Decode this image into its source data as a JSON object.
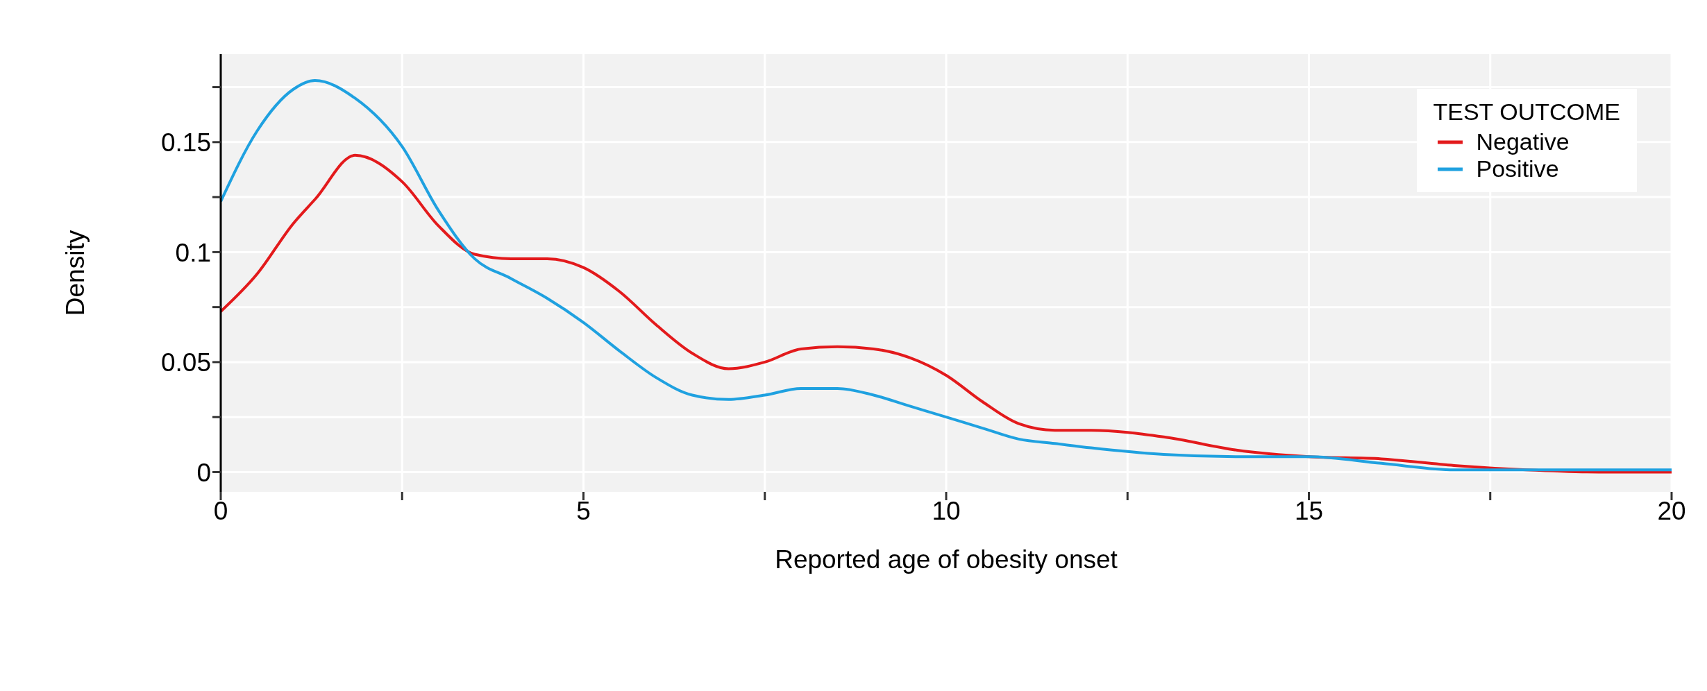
{
  "chart_data": {
    "type": "line",
    "xlabel": "Reported age of obesity onset",
    "ylabel": "Density",
    "legend_title": "TEST OUTCOME",
    "legend": "top right",
    "grid": true,
    "marker": "none",
    "line_style": "solid",
    "x": [
      0,
      0.5,
      1,
      1.3,
      1.85,
      2.5,
      3,
      3.5,
      4,
      4.5,
      5,
      5.5,
      6,
      6.5,
      7,
      7.5,
      8,
      8.5,
      9,
      9.5,
      10,
      10.5,
      11,
      11.5,
      12,
      13,
      14,
      15,
      16,
      17,
      18,
      19,
      20
    ],
    "xlim": [
      0,
      20
    ],
    "xticks": [
      0,
      {
        "value": 2.5,
        "label": null
      },
      5,
      {
        "value": 7.5,
        "label": null
      },
      10,
      {
        "value": 12.5,
        "label": null
      },
      15,
      {
        "value": 17.5,
        "label": null
      },
      20
    ],
    "ylim": [
      -0.009,
      0.19
    ],
    "yticks": [
      0,
      {
        "value": 0.025,
        "label": null
      },
      0.05,
      {
        "value": 0.075,
        "label": null
      },
      0.1,
      {
        "value": 0.125,
        "label": null
      },
      0.15,
      {
        "value": 0.175,
        "label": null
      }
    ],
    "series": [
      {
        "name": "Negative",
        "color": "#e31a1c",
        "values": [
          0.073,
          0.09,
          0.113,
          0.124,
          0.144,
          0.132,
          0.112,
          0.099,
          0.097,
          0.097,
          0.093,
          0.082,
          0.067,
          0.054,
          0.047,
          0.05,
          0.056,
          0.057,
          0.056,
          0.052,
          0.044,
          0.032,
          0.022,
          0.019,
          0.019,
          0.016,
          0.01,
          0.007,
          0.006,
          0.003,
          0.001,
          0,
          0
        ]
      },
      {
        "name": "Positive",
        "color": "#1fa1e0",
        "values": [
          0.123,
          0.155,
          0.174,
          0.178,
          0.17,
          0.148,
          0.119,
          0.097,
          0.088,
          0.079,
          0.068,
          0.055,
          0.043,
          0.035,
          0.033,
          0.035,
          0.038,
          0.038,
          0.035,
          0.03,
          0.025,
          0.02,
          0.015,
          0.013,
          0.011,
          0.008,
          0.007,
          0.007,
          0.004,
          0.001,
          0.001,
          0.001,
          0.001
        ]
      }
    ]
  }
}
